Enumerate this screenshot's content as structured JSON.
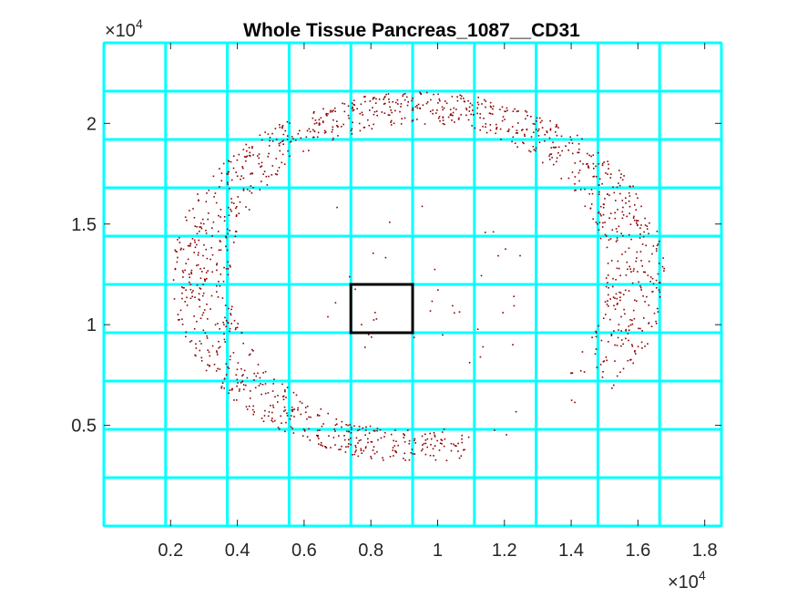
{
  "chart_data": {
    "type": "scatter",
    "title": "Whole Tissue Pancreas_1087__CD31",
    "xlabel": "",
    "ylabel": "",
    "xlim": [
      0,
      18500
    ],
    "ylim": [
      0,
      24000
    ],
    "x_ticks": [
      {
        "value": 2000,
        "label": "0.2"
      },
      {
        "value": 4000,
        "label": "0.4"
      },
      {
        "value": 6000,
        "label": "0.6"
      },
      {
        "value": 8000,
        "label": "0.8"
      },
      {
        "value": 10000,
        "label": "1"
      },
      {
        "value": 12000,
        "label": "1.2"
      },
      {
        "value": 14000,
        "label": "1.4"
      },
      {
        "value": 16000,
        "label": "1.6"
      },
      {
        "value": 18000,
        "label": "1.8"
      }
    ],
    "y_ticks": [
      {
        "value": 5000,
        "label": "0.5"
      },
      {
        "value": 10000,
        "label": "1"
      },
      {
        "value": 15000,
        "label": "1.5"
      },
      {
        "value": 20000,
        "label": "2"
      }
    ],
    "x_exponent": {
      "base": "×10",
      "power": "4"
    },
    "y_exponent": {
      "base": "×10",
      "power": "4"
    },
    "grid": {
      "x_lines": [
        1850,
        3700,
        5550,
        7400,
        9250,
        11100,
        12950,
        14800,
        16650
      ],
      "y_lines": [
        2400,
        4800,
        7200,
        9600,
        12000,
        14400,
        16800,
        19200,
        21600
      ],
      "color": "#00FFFF"
    },
    "highlight_box": {
      "x0": 7400,
      "x1": 9250,
      "y0": 9600,
      "y1": 12000,
      "color": "#000000"
    },
    "point_color": "#8B0000",
    "point_distribution": {
      "shape": "ring",
      "center": [
        9400,
        12400
      ],
      "outer_radius": [
        7400,
        9200
      ],
      "inner_radius": [
        5600,
        7600
      ],
      "approx_count": 1400
    }
  }
}
